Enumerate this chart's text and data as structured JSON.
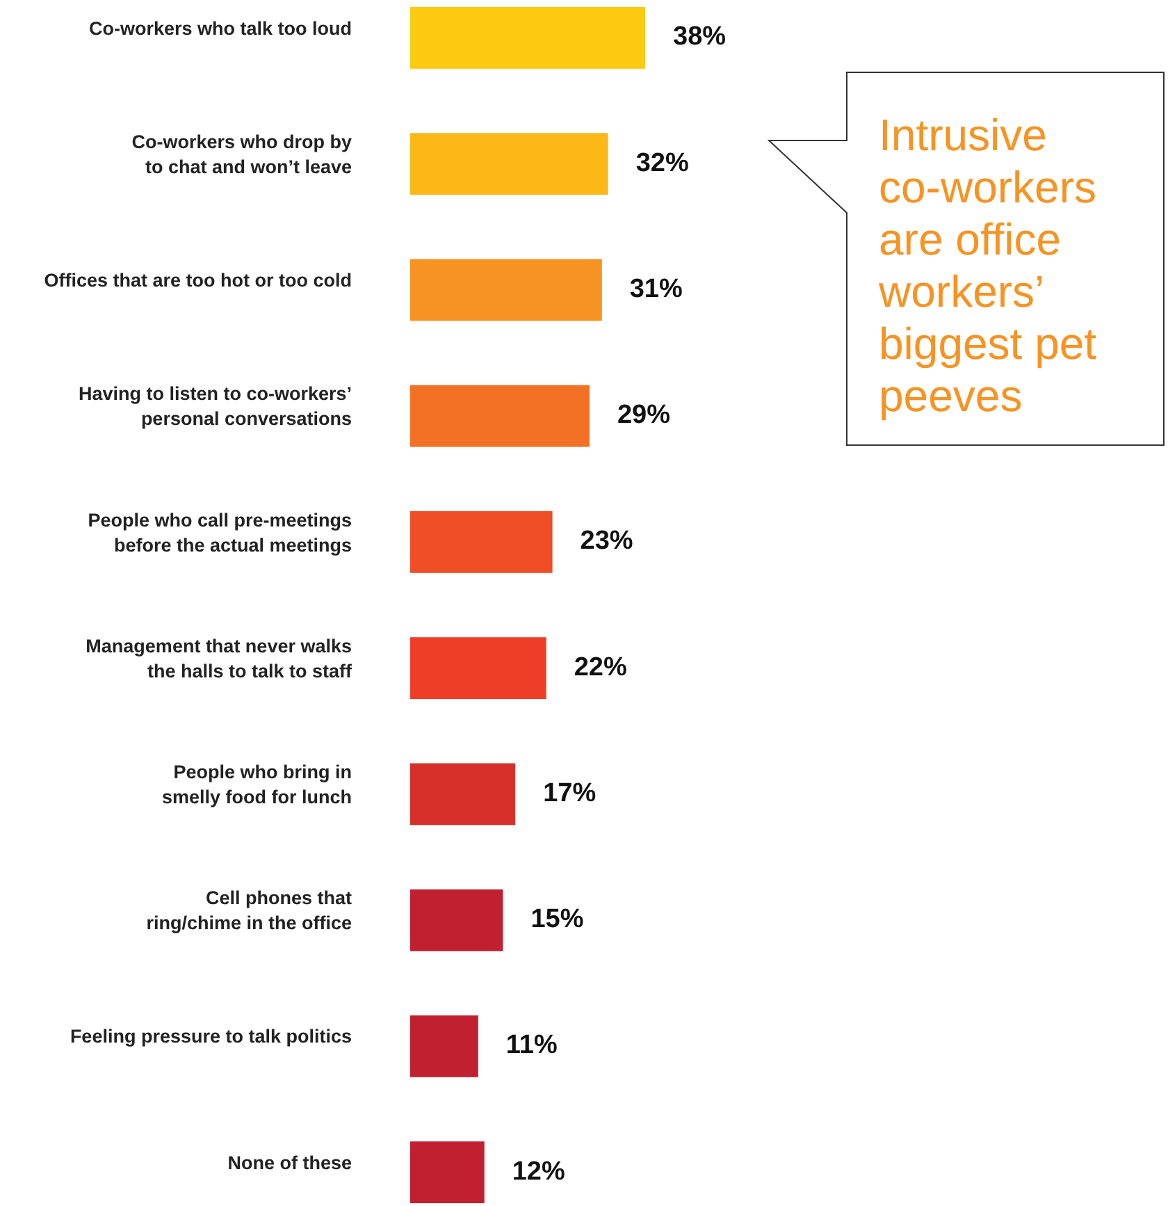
{
  "chart_data": {
    "type": "bar",
    "orientation": "horizontal",
    "categories": [
      "Co-workers who talk too loud",
      "Co-workers who drop by to chat and won’t leave",
      "Offices that are too hot or too cold",
      "Having to listen to co-workers’ personal conversations",
      "People who call pre-meetings before the actual meetings",
      "Management that never walks the halls to talk to staff",
      "People who bring in smelly food for lunch",
      "Cell phones that ring/chime in the office",
      "Feeling pressure to talk politics",
      "None of these"
    ],
    "values": [
      38,
      32,
      31,
      29,
      23,
      22,
      17,
      15,
      11,
      12
    ],
    "colors": [
      "#fdc911",
      "#fbb817",
      "#f69322",
      "#f37124",
      "#ef4e26",
      "#ee3e27",
      "#d7302a",
      "#c12030",
      "#c0202f",
      "#c12030"
    ],
    "value_labels": [
      "38%",
      "32%",
      "31%",
      "29%",
      "23%",
      "22%",
      "17%",
      "15%",
      "11%",
      "12%"
    ],
    "annotations": [
      "Intrusive co-workers are office workers’ biggest pet peeves"
    ]
  }
}
